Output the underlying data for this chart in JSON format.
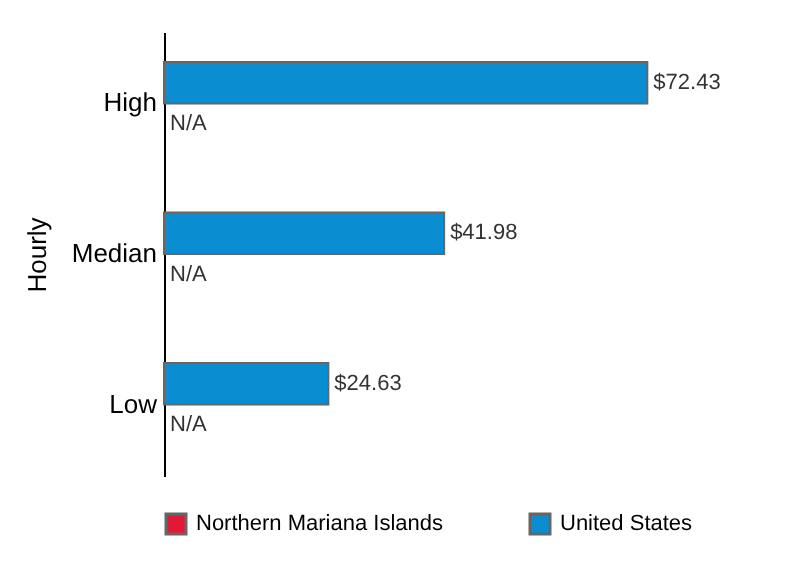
{
  "chart_data": {
    "type": "bar",
    "orientation": "horizontal",
    "ylabel": "Hourly",
    "categories": [
      "High",
      "Median",
      "Low"
    ],
    "series": [
      {
        "name": "Northern Mariana Islands",
        "color": "#e31837",
        "values": [
          null,
          null,
          null
        ],
        "value_labels": [
          "N/A",
          "N/A",
          "N/A"
        ]
      },
      {
        "name": "United States",
        "color": "#0b8ed1",
        "values": [
          72.43,
          41.98,
          24.63
        ],
        "value_labels": [
          "$72.43",
          "$41.98",
          "$24.63"
        ]
      }
    ],
    "legend": "bottom"
  }
}
